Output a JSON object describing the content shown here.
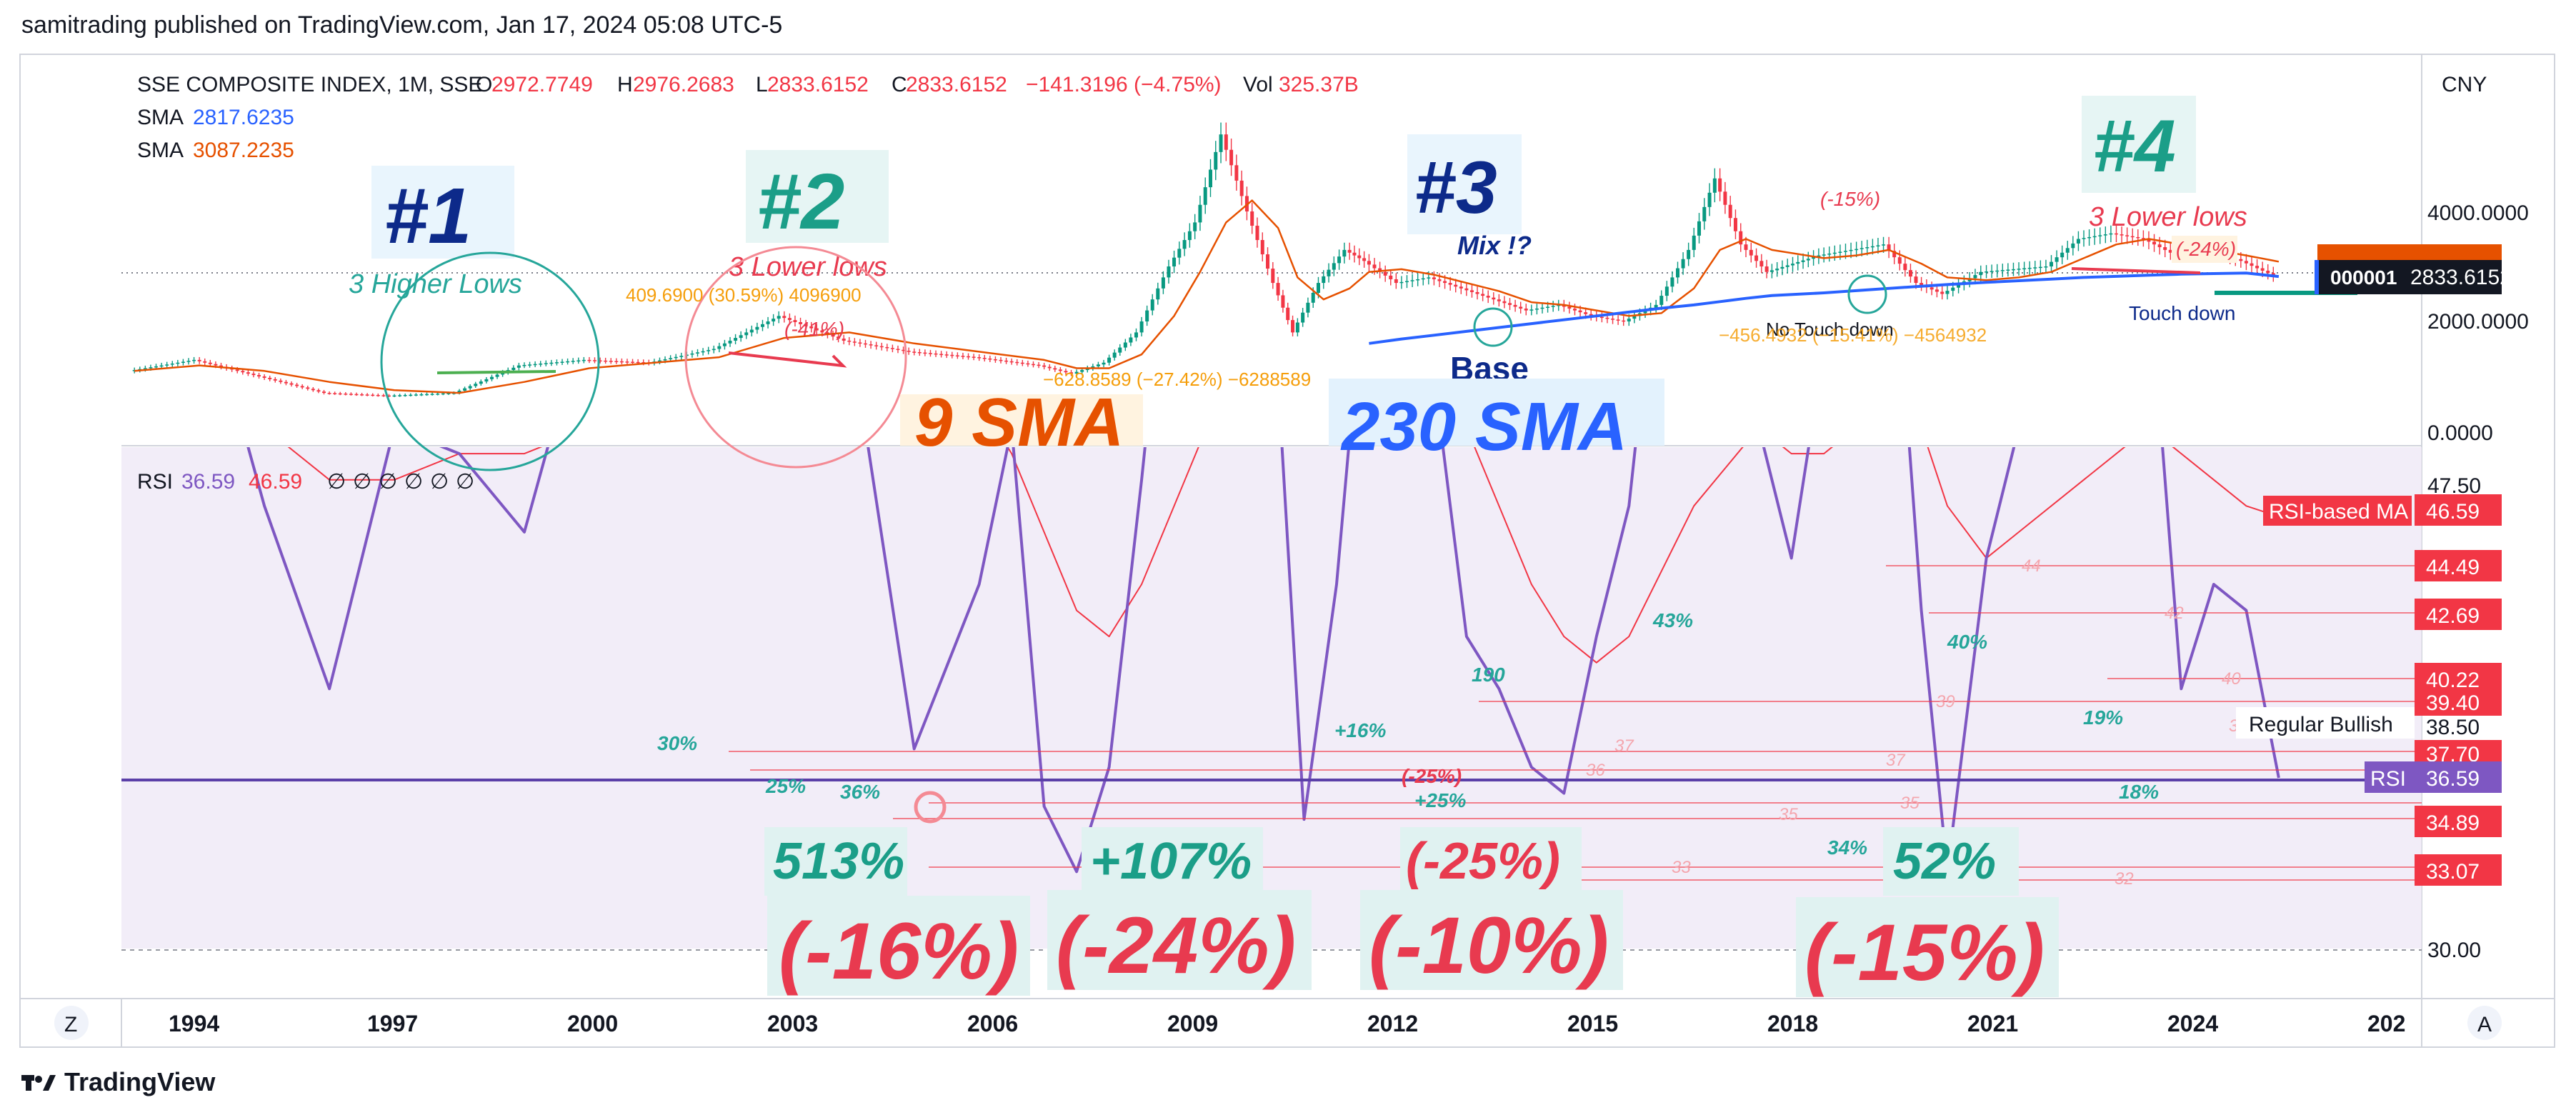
{
  "header": {
    "published": "samitrading published on TradingView.com, Jan 17, 2024 05:08 UTC-5"
  },
  "legend": {
    "symbol": "SSE COMPOSITE INDEX, 1M, SSE",
    "o_label": "O",
    "o_value": "2972.7749",
    "h_label": "H",
    "h_value": "2976.2683",
    "l_label": "L",
    "l_value": "2833.6152",
    "c_label": "C",
    "c_value": "2833.6152",
    "change": "−141.3196 (−4.75%)",
    "vol_label": "Vol",
    "vol_value": "325.37B",
    "sma1_label": "SMA",
    "sma1_value": "2817.6235",
    "sma2_label": "SMA",
    "sma2_value": "3087.2235"
  },
  "currency": "CNY",
  "price_tag": {
    "symbol": "000001",
    "value": "2833.6152"
  },
  "rsi_legend": {
    "label": "RSI",
    "value1": "36.59",
    "value2": "46.59",
    "empties": [
      "∅",
      "∅",
      "∅",
      "∅",
      "∅",
      "∅"
    ]
  },
  "colors": {
    "up": "#089981",
    "down": "#f23645",
    "sma_short": "#e65100",
    "sma_long": "#2962ff",
    "rsi": "#7e57c2",
    "rsi_ma": "#f23645",
    "rsi_band": "#ede7f6",
    "teal": "#26a69a",
    "red_label": "#e83a4f",
    "navy": "#0d2a8a",
    "orange": "#f59e0b"
  },
  "chart_data": [
    {
      "type": "line",
      "name": "price-panel",
      "x_ticks": [
        "1994",
        "1997",
        "2000",
        "2003",
        "2006",
        "2009",
        "2012",
        "2015",
        "2018",
        "2021",
        "2024",
        "202"
      ],
      "y_ticks": [
        "4000.0000",
        "2000.0000",
        "0.0000"
      ],
      "x": [
        1991.0,
        1992.0,
        1993.0,
        1994.0,
        1995.0,
        1996.0,
        1997.0,
        1998.0,
        1999.0,
        2000.0,
        2001.0,
        2002.0,
        2003.0,
        2004.0,
        2005.0,
        2005.5,
        2006.0,
        2006.5,
        2007.0,
        2007.4,
        2007.8,
        2008.2,
        2008.6,
        2008.9,
        2009.3,
        2009.7,
        2010.0,
        2010.5,
        2011.0,
        2011.5,
        2012.0,
        2012.5,
        2013.0,
        2013.5,
        2014.0,
        2014.5,
        2015.0,
        2015.4,
        2015.8,
        2016.2,
        2017.0,
        2017.5,
        2018.0,
        2018.5,
        2018.9,
        2019.5,
        2020.0,
        2020.5,
        2021.0,
        2021.5,
        2022.0,
        2022.5,
        2023.0,
        2023.5,
        2024.0
      ],
      "close": [
        1100,
        1300,
        1000,
        700,
        650,
        700,
        1200,
        1300,
        1250,
        1500,
        2100,
        1650,
        1450,
        1350,
        1200,
        1050,
        1250,
        1800,
        3000,
        3800,
        5400,
        4000,
        2700,
        1800,
        2700,
        3300,
        3100,
        2700,
        2800,
        2600,
        2400,
        2200,
        2300,
        2100,
        2000,
        2300,
        3300,
        4600,
        3400,
        2900,
        3200,
        3300,
        3400,
        2700,
        2500,
        2900,
        2950,
        3000,
        3500,
        3600,
        3500,
        3200,
        3300,
        3100,
        2834
      ],
      "sma_9": [
        1100,
        1200,
        1100,
        900,
        750,
        700,
        900,
        1150,
        1250,
        1350,
        1700,
        1800,
        1600,
        1450,
        1300,
        1150,
        1150,
        1400,
        2100,
        2900,
        3800,
        4200,
        3700,
        2800,
        2400,
        2600,
        2900,
        2950,
        2850,
        2700,
        2550,
        2350,
        2300,
        2200,
        2100,
        2150,
        2600,
        3300,
        3500,
        3300,
        3150,
        3200,
        3300,
        3050,
        2800,
        2750,
        2800,
        2900,
        3150,
        3400,
        3500,
        3400,
        3300,
        3200,
        3087
      ],
      "sma_230": [
        null,
        null,
        null,
        null,
        null,
        null,
        null,
        null,
        null,
        null,
        null,
        null,
        null,
        null,
        null,
        null,
        null,
        null,
        null,
        null,
        null,
        null,
        null,
        null,
        null,
        null,
        1600,
        1680,
        1750,
        1820,
        1890,
        1960,
        2030,
        2100,
        2170,
        2240,
        2300,
        2360,
        2420,
        2470,
        2520,
        2560,
        2600,
        2640,
        2670,
        2710,
        2740,
        2770,
        2800,
        2820,
        2840,
        2860,
        2870,
        2880,
        2817
      ]
    },
    {
      "type": "line",
      "name": "rsi-panel",
      "y_ticks": [
        "47.50",
        "30.00"
      ],
      "x": [
        1991.0,
        1992.0,
        1993.0,
        1994.0,
        1995.0,
        1996.0,
        1997.0,
        1998.0,
        1999.0,
        2000.0,
        2001.0,
        2002.0,
        2003.0,
        2004.0,
        2004.5,
        2005.0,
        2005.5,
        2006.0,
        2006.5,
        2007.0,
        2008.0,
        2008.5,
        2009.0,
        2009.5,
        2010.0,
        2011.0,
        2011.5,
        2012.0,
        2012.5,
        2013.0,
        2013.5,
        2014.0,
        2015.0,
        2016.0,
        2016.5,
        2017.0,
        2018.0,
        2018.5,
        2018.9,
        2019.5,
        2020.0,
        2021.0,
        2022.0,
        2022.5,
        2023.0,
        2023.5,
        2024.0
      ],
      "rsi": [
        58,
        56,
        47,
        40,
        50,
        49,
        46,
        55,
        60,
        62,
        68,
        54,
        37.7,
        44,
        50,
        35.5,
        33,
        37,
        48,
        60,
        70,
        56,
        35,
        44,
        58,
        52,
        42,
        40,
        37,
        36,
        42,
        47,
        70,
        50,
        45,
        53,
        60,
        43,
        33,
        45,
        50,
        52,
        56,
        40,
        44,
        43,
        36.59
      ],
      "rsi_ma": [
        52,
        52,
        50,
        48,
        48,
        49,
        49,
        50,
        52,
        54,
        57,
        56,
        53,
        51,
        49,
        46,
        43,
        42,
        44,
        47,
        53,
        54,
        52,
        50,
        51,
        52,
        50,
        47,
        44,
        42,
        41,
        42,
        47,
        50,
        49,
        49,
        51,
        50,
        47,
        45,
        46,
        48,
        50,
        49,
        48,
        47,
        46.59
      ]
    }
  ],
  "annotations": {
    "n1": "#1",
    "n1_sub": "3 Higher Lows",
    "n2": "#2",
    "n2_sub": "3 Lower lows",
    "n3": "#3",
    "n3_sub": "Mix  !?",
    "n4": "#4",
    "n4_sub": "3 Lower lows",
    "measure1": "409.6900 (30.59%) 4096900",
    "measure2": "(-41%)",
    "measure3": "−628.8589 (−27.42%) −6288589",
    "measure4": "(-15%)",
    "measure5": "(-24%)",
    "measure6": "−456.4932 (−15.41%) −4564932",
    "no_touch": "No Touch down",
    "touch": "Touch down",
    "base": "Base",
    "sma9": "9 SMA",
    "sma230": "230 SMA",
    "rsi_pcts": [
      "30%",
      "25%",
      "36%",
      "+16%",
      "(-25%)",
      "+25%",
      "190",
      "43%",
      "40%",
      "34%",
      "19%",
      "18%"
    ],
    "big_green": [
      "513%",
      "+107%",
      "(-25%)",
      "52%"
    ],
    "big_red": [
      "(-16%)",
      "(-24%)",
      "(-10%)",
      "(-15%)"
    ],
    "regular_bullish": "Regular Bullish",
    "rsi_based_ma": "RSI-based MA",
    "rsi_tag": "RSI",
    "rsi_levels": [
      "44",
      "42",
      "40",
      "39",
      "38",
      "37",
      "37",
      "36",
      "35",
      "35",
      "33",
      "32"
    ]
  },
  "rsi_axis_tags": [
    "46.59",
    "44.49",
    "42.69",
    "40.22",
    "39.40",
    "38.50",
    "37.70",
    "36.59",
    "34.89",
    "33.07"
  ],
  "bottom_buttons": {
    "left": "Z",
    "right": "A"
  },
  "footer": "TradingView"
}
